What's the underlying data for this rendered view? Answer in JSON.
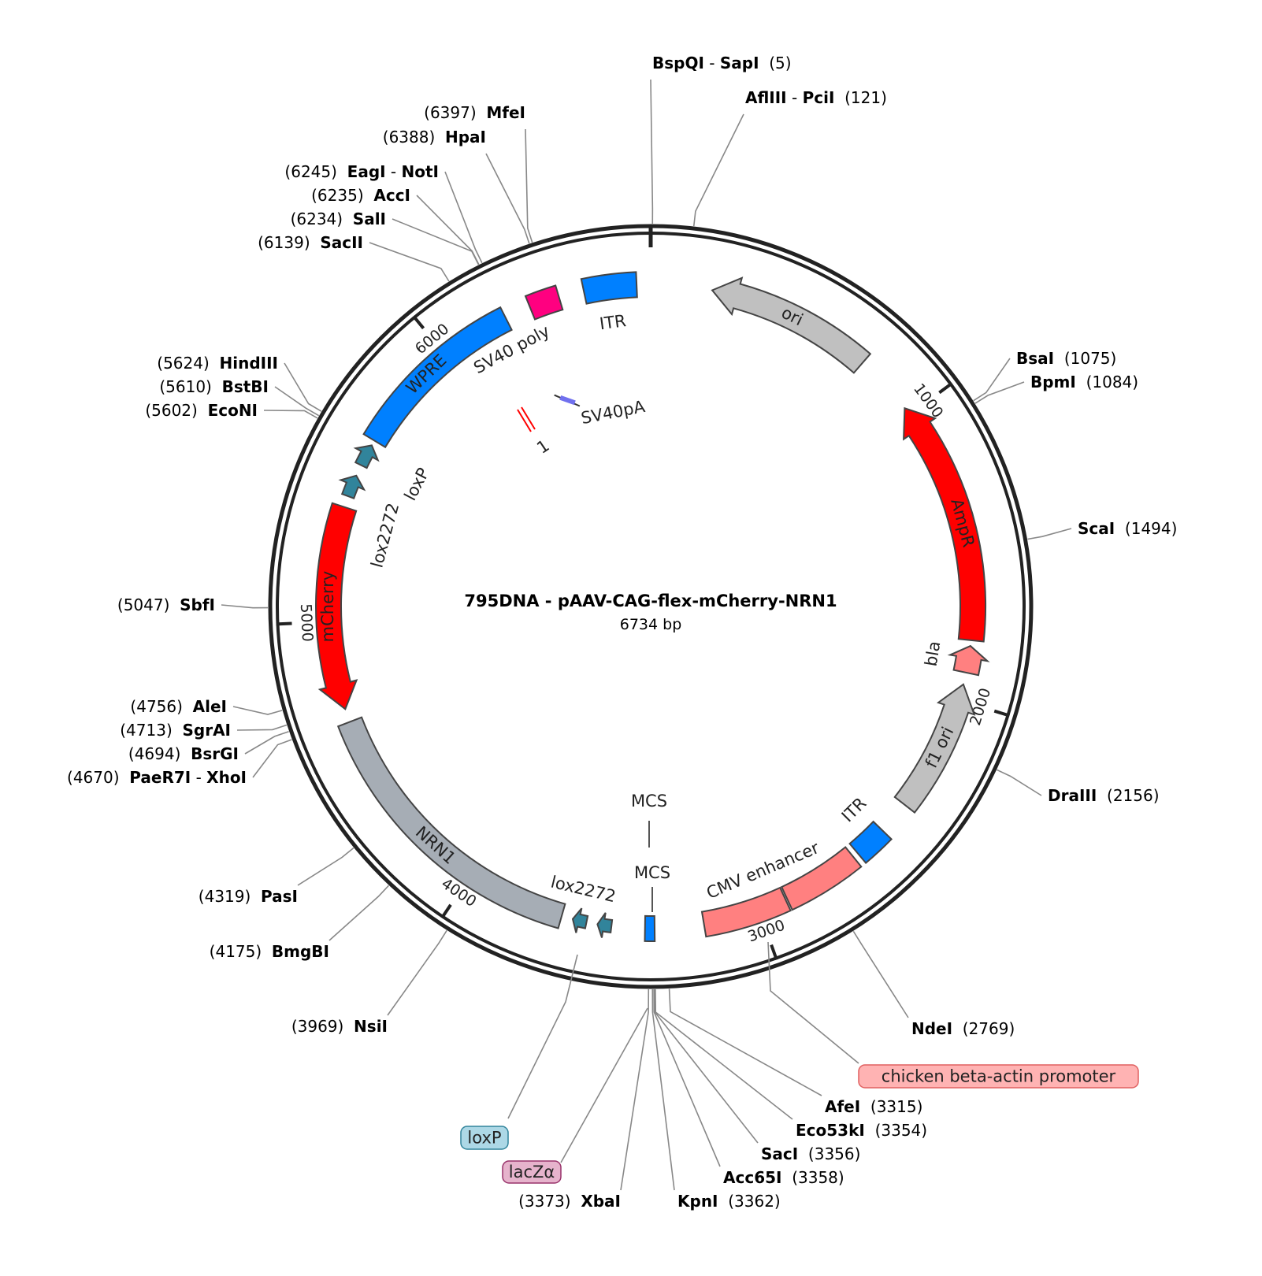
{
  "title": "795DNA - pAAV-CAG-flex-mCherry-NRN1",
  "length_label": "6734 bp",
  "length_bp": 6734,
  "ticks": [
    "1000",
    "2000",
    "3000",
    "4000",
    "5000",
    "6000"
  ],
  "features": [
    {
      "label": "ori",
      "start": 206,
      "end": 767,
      "direction": "reverse",
      "color": "#c0c0c0"
    },
    {
      "label": "AmpR",
      "start": 973,
      "end": 1796,
      "direction": "reverse",
      "color": "#ff0000"
    },
    {
      "label": "bla",
      "start": 1815,
      "end": 1905,
      "direction": "reverse",
      "color": "#ff8080"
    },
    {
      "label": "f1 ori",
      "start": 1945,
      "end": 2394,
      "direction": "reverse",
      "color": "#c0c0c0"
    },
    {
      "label": "ITR",
      "start": 2507,
      "end": 2619,
      "direction": "none",
      "color": "#0080ff"
    },
    {
      "label": "CMV enhancer",
      "start": 2638,
      "end": 2899,
      "direction": "none",
      "color": "#ff8080"
    },
    {
      "label": "",
      "start": 2905,
      "end": 3189,
      "direction": "none",
      "color": "#ff8080"
    },
    {
      "label": "MCS",
      "start": 3354,
      "end": 3386,
      "direction": "none",
      "color": "#0080ff"
    },
    {
      "label": "lox2272",
      "start": 3498,
      "end": 3545,
      "direction": "forward",
      "color": "#31849b"
    },
    {
      "label": "",
      "start": 3582,
      "end": 3629,
      "direction": "forward",
      "color": "#31849b"
    },
    {
      "label": "NRN1",
      "start": 3667,
      "end": 4658,
      "direction": "none",
      "color": "#a6adb5"
    },
    {
      "label": "mCherry",
      "start": 4703,
      "end": 5387,
      "direction": "reverse",
      "color": "#ff0000"
    },
    {
      "label": "lox2272",
      "start": 5425,
      "end": 5499,
      "direction": "forward",
      "color": "#31849b"
    },
    {
      "label": "loxP",
      "start": 5537,
      "end": 5612,
      "direction": "forward",
      "color": "#31849b"
    },
    {
      "label": "WPRE",
      "start": 5630,
      "end": 6235,
      "direction": "none",
      "color": "#0080ff"
    },
    {
      "label": "SV40 poly",
      "start": 6323,
      "end": 6425,
      "direction": "none",
      "color": "#ff0080"
    },
    {
      "label": "ITR",
      "start": 6510,
      "end": 6687,
      "direction": "none",
      "color": "#0080ff"
    }
  ],
  "inner_features": [
    {
      "label": "SV40pA",
      "color": "#7070ee"
    },
    {
      "label": "1",
      "color": "#ff0000"
    }
  ],
  "mcs_labels": [
    "MCS",
    "MCS"
  ],
  "enzymes": [
    {
      "name": "BspQI - SapI",
      "position": "5"
    },
    {
      "name": "AflIII - PciI",
      "position": "121"
    },
    {
      "name": "BsaI",
      "position": "1075"
    },
    {
      "name": "BpmI",
      "position": "1084"
    },
    {
      "name": "ScaI",
      "position": "1494"
    },
    {
      "name": "DraIII",
      "position": "2156"
    },
    {
      "name": "NdeI",
      "position": "2769"
    },
    {
      "name": "AfeI",
      "position": "3315"
    },
    {
      "name": "Eco53kI",
      "position": "3354"
    },
    {
      "name": "SacI",
      "position": "3356"
    },
    {
      "name": "Acc65I",
      "position": "3358"
    },
    {
      "name": "KpnI",
      "position": "3362"
    },
    {
      "name": "XbaI",
      "position": "3373"
    },
    {
      "name": "NsiI",
      "position": "3969"
    },
    {
      "name": "BmgBI",
      "position": "4175"
    },
    {
      "name": "PasI",
      "position": "4319"
    },
    {
      "name": "PaeR7I - XhoI",
      "position": "4670"
    },
    {
      "name": "BsrGI",
      "position": "4694"
    },
    {
      "name": "SgrAI",
      "position": "4713"
    },
    {
      "name": "AleI",
      "position": "4756"
    },
    {
      "name": "SbfI",
      "position": "5047"
    },
    {
      "name": "EcoNI",
      "position": "5602"
    },
    {
      "name": "BstBI",
      "position": "5610"
    },
    {
      "name": "HindIII",
      "position": "5624"
    },
    {
      "name": "SacII",
      "position": "6139"
    },
    {
      "name": "SalI",
      "position": "6234"
    },
    {
      "name": "AccI",
      "position": "6235"
    },
    {
      "name": "EagI - NotI",
      "position": "6245"
    },
    {
      "name": "HpaI",
      "position": "6388"
    },
    {
      "name": "MfeI",
      "position": "6397"
    }
  ],
  "callouts": [
    {
      "label": "chicken beta-actin promoter",
      "fill": "#ffb3b3",
      "stroke": "#e06060"
    },
    {
      "label": "loxP",
      "fill": "#add8e6",
      "stroke": "#31849b"
    },
    {
      "label": "lacZα",
      "fill": "#e6b3cc",
      "stroke": "#99336b"
    }
  ]
}
